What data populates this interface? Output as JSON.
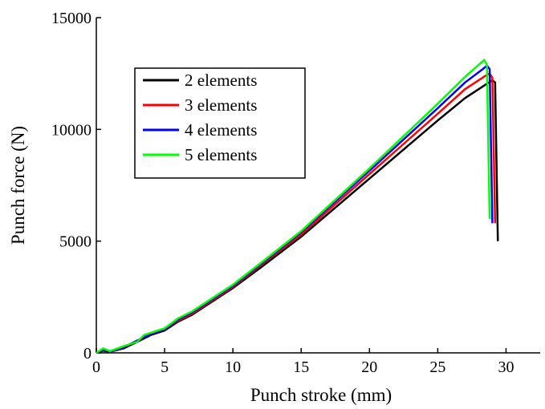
{
  "chart_data": {
    "type": "line",
    "x_label": "Punch stroke (mm)",
    "y_label": "Punch force (N)",
    "xlim": [
      0,
      32.5
    ],
    "ylim": [
      0,
      15000
    ],
    "xticks": [
      0,
      5,
      10,
      15,
      20,
      25,
      30
    ],
    "yticks": [
      0,
      5000,
      10000,
      15000
    ],
    "grid": false,
    "legend": "upper left",
    "series": [
      {
        "name": "2 elements",
        "color": "#000000",
        "x": [
          0,
          0.5,
          1,
          2,
          3,
          4,
          5,
          6,
          7,
          8,
          10,
          12,
          15,
          20,
          25,
          27,
          28.5,
          29,
          29.2,
          29.4
        ],
        "values": [
          0,
          100,
          50,
          200,
          500,
          800,
          1000,
          1400,
          1700,
          2100,
          2900,
          3800,
          5200,
          7800,
          10400,
          11400,
          12000,
          12200,
          12100,
          5000
        ]
      },
      {
        "name": "3 elements",
        "color": "#ff0000",
        "x": [
          0,
          0.5,
          1,
          2,
          3,
          4,
          5,
          6,
          7,
          8,
          10,
          12,
          15,
          20,
          25,
          27,
          28.5,
          28.8,
          29.0,
          29.2
        ],
        "values": [
          0,
          150,
          50,
          250,
          550,
          850,
          1050,
          1450,
          1750,
          2150,
          2950,
          3900,
          5300,
          8000,
          10700,
          11800,
          12400,
          12500,
          12300,
          5800
        ]
      },
      {
        "name": "4 elements",
        "color": "#0000ff",
        "x": [
          0,
          0.5,
          1,
          2,
          3,
          4,
          5,
          6,
          7,
          8,
          10,
          12,
          15,
          20,
          25,
          27,
          28.3,
          28.6,
          28.8,
          29.0
        ],
        "values": [
          0,
          150,
          60,
          250,
          550,
          850,
          1050,
          1500,
          1800,
          2200,
          3000,
          3950,
          5400,
          8150,
          10950,
          12100,
          12700,
          12850,
          12700,
          5800
        ]
      },
      {
        "name": "5 elements",
        "color": "#00ff00",
        "x": [
          0,
          0.5,
          1,
          2,
          3,
          3.5,
          4,
          5,
          6,
          7,
          8,
          10,
          12,
          15,
          20,
          25,
          27,
          28.2,
          28.4,
          28.6,
          28.8
        ],
        "values": [
          0,
          200,
          80,
          300,
          500,
          800,
          900,
          1100,
          1550,
          1850,
          2250,
          3050,
          4000,
          5450,
          8250,
          11150,
          12350,
          13000,
          13100,
          12900,
          6000
        ]
      }
    ]
  }
}
